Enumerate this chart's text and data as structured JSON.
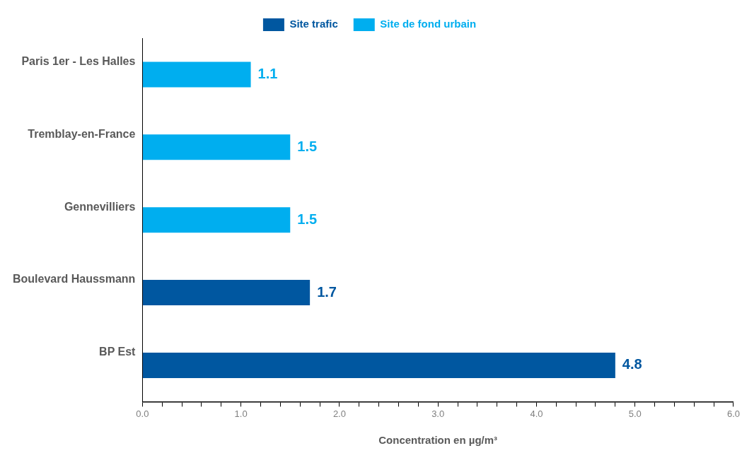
{
  "chart_data": {
    "type": "bar",
    "orientation": "horizontal",
    "xlabel": "Concentration en µg/m³",
    "categories": [
      "Paris 1er - Les Halles",
      "Tremblay-en-France",
      "Gennevilliers",
      "Boulevard Haussmann",
      "BP Est"
    ],
    "series": [
      {
        "name": "Site trafic",
        "color": "#0057a0",
        "values": [
          null,
          null,
          null,
          1.7,
          4.8
        ]
      },
      {
        "name": "Site de fond urbain",
        "color": "#00aeef",
        "values": [
          1.1,
          1.5,
          1.5,
          null,
          null
        ]
      }
    ],
    "xlim": [
      0,
      6
    ],
    "xticks": [
      {
        "value": 0,
        "label": "0.0"
      },
      {
        "value": 0.2,
        "label": null
      },
      {
        "value": 0.4,
        "label": null
      },
      {
        "value": 0.6,
        "label": null
      },
      {
        "value": 0.8,
        "label": null
      },
      {
        "value": 1,
        "label": "1.0"
      },
      {
        "value": 1.2,
        "label": null
      },
      {
        "value": 1.4,
        "label": null
      },
      {
        "value": 1.6,
        "label": null
      },
      {
        "value": 1.8,
        "label": null
      },
      {
        "value": 2,
        "label": "2.0"
      },
      {
        "value": 2.2,
        "label": null
      },
      {
        "value": 2.4,
        "label": null
      },
      {
        "value": 2.6,
        "label": null
      },
      {
        "value": 2.8,
        "label": null
      },
      {
        "value": 3,
        "label": "3.0"
      },
      {
        "value": 3.2,
        "label": null
      },
      {
        "value": 3.4,
        "label": null
      },
      {
        "value": 3.6,
        "label": null
      },
      {
        "value": 3.8,
        "label": null
      },
      {
        "value": 4,
        "label": "4.0"
      },
      {
        "value": 4.2,
        "label": null
      },
      {
        "value": 4.4,
        "label": null
      },
      {
        "value": 4.6,
        "label": null
      },
      {
        "value": 4.8,
        "label": null
      },
      {
        "value": 5,
        "label": "5.0"
      },
      {
        "value": 5.2,
        "label": null
      },
      {
        "value": 5.4,
        "label": null
      },
      {
        "value": 5.6,
        "label": null
      },
      {
        "value": 5.8,
        "label": null
      },
      {
        "value": 6,
        "label": "6.0"
      }
    ],
    "grid": false,
    "legend": "top",
    "data_labels": true
  }
}
